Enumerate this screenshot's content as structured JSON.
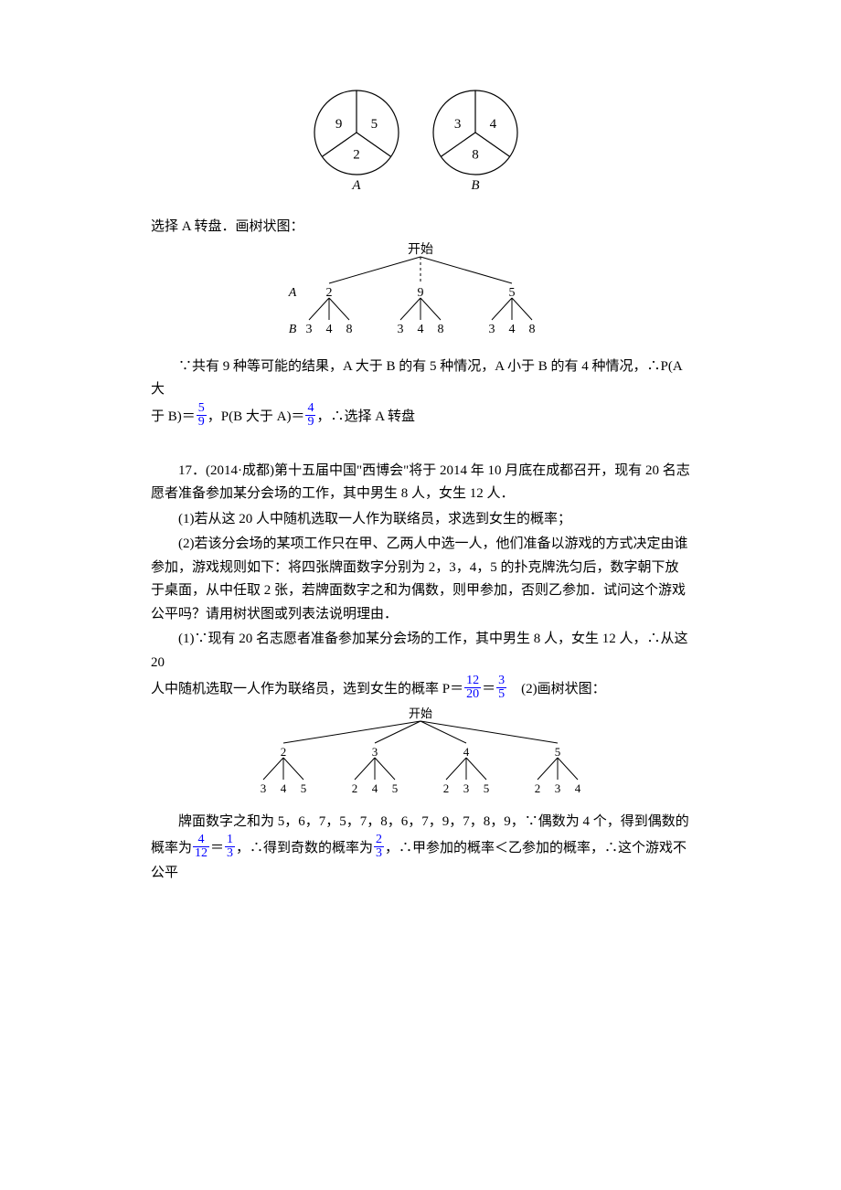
{
  "spinners": {
    "A": {
      "sectors": [
        "9",
        "5",
        "2"
      ],
      "label": "A"
    },
    "B": {
      "sectors": [
        "3",
        "4",
        "8"
      ],
      "label": "B"
    },
    "radius": 46,
    "stroke": "#000000",
    "fill": "#ffffff",
    "text_color": "#000000",
    "font_size": 15,
    "label_font_style": "italic",
    "label_font_family": "Times New Roman"
  },
  "intro_line": "选择 A 转盘．画树状图：",
  "tree1": {
    "root_label": "开始",
    "row_labels": {
      "level1": "A",
      "level2": "B"
    },
    "level1": [
      "2",
      "9",
      "5"
    ],
    "level2": [
      "3",
      "4",
      "8"
    ],
    "stroke": "#000000",
    "text_color": "#000000",
    "font_size": 14,
    "label_font_style": "italic"
  },
  "conclusion1": {
    "pre": "∵共有 9 种等可能的结果，A 大于 B 的有 5 种情况，A 小于 B 的有 4 种情况，∴P(A 大",
    "mid1": "于 B)＝",
    "frac1": {
      "num": "5",
      "den": "9"
    },
    "mid2": "，P(B 大于 A)＝",
    "frac2": {
      "num": "4",
      "den": "9"
    },
    "post": "，∴选择 A 转盘"
  },
  "q17": {
    "header": "17．(2014·成都)第十五届中国\"西博会\"将于 2014 年 10 月底在成都召开，现有 20 名志愿者准备参加某分会场的工作，其中男生 8 人，女生 12 人．",
    "part1": "(1)若从这 20 人中随机选取一人作为联络员，求选到女生的概率；",
    "part2": "(2)若该分会场的某项工作只在甲、乙两人中选一人，他们准备以游戏的方式决定由谁参加，游戏规则如下：将四张牌面数字分别为 2，3，4，5 的扑克牌洗匀后，数字朝下放于桌面，从中任取 2 张，若牌面数字之和为偶数，则甲参加，否则乙参加．试问这个游戏公平吗？请用树状图或列表法说明理由．",
    "sol1_pre": "(1)∵现有 20 名志愿者准备参加某分会场的工作，其中男生 8 人，女生 12 人，∴从这 20",
    "sol1_mid": "人中随机选取一人作为联络员，选到女生的概率 P＝",
    "sol1_frac1": {
      "num": "12",
      "den": "20"
    },
    "sol1_eq": "＝",
    "sol1_frac2": {
      "num": "3",
      "den": "5"
    },
    "sol1_post": "　(2)画树状图：",
    "tree2": {
      "root_label": "开始",
      "level1": [
        "2",
        "3",
        "4",
        "5"
      ],
      "level2": [
        [
          "3",
          "4",
          "5"
        ],
        [
          "2",
          "4",
          "5"
        ],
        [
          "2",
          "3",
          "5"
        ],
        [
          "2",
          "3",
          "4"
        ]
      ],
      "stroke": "#000000",
      "text_color": "#000000",
      "font_size": 13
    },
    "sol2_line1": "牌面数字之和为 5，6，7，5，7，8，6，7，9，7，8，9，∵偶数为 4 个，得到偶数的",
    "sol2_pre": "概率为",
    "sol2_frac1": {
      "num": "4",
      "den": "12"
    },
    "sol2_eq1": "＝",
    "sol2_frac2": {
      "num": "1",
      "den": "3"
    },
    "sol2_mid": "，∴得到奇数的概率为",
    "sol2_frac3": {
      "num": "2",
      "den": "3"
    },
    "sol2_post": "，∴甲参加的概率＜乙参加的概率，∴这个游戏不公平"
  }
}
